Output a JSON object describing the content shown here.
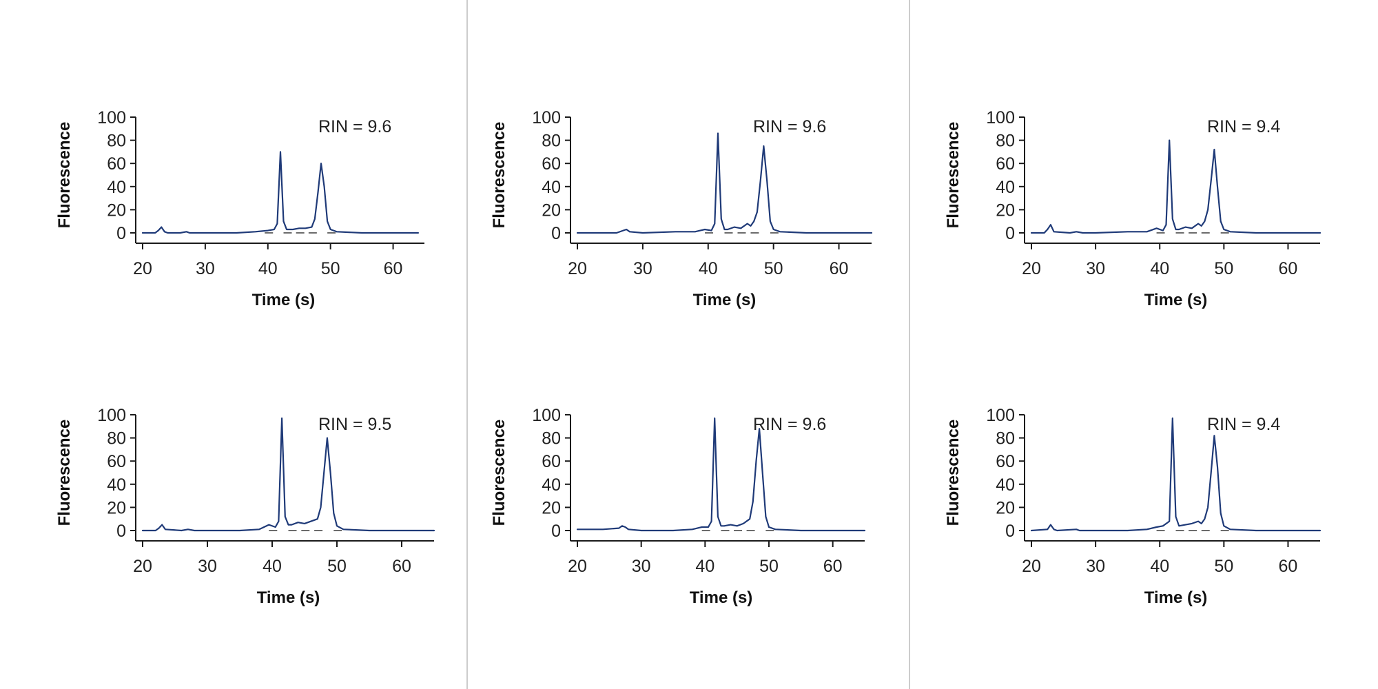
{
  "chart_data": [
    {
      "type": "line",
      "panel": "top-left",
      "ylabel": "Fluorescence",
      "xlabel": "Time (s)",
      "ylim": [
        0,
        100
      ],
      "xlim": [
        20,
        65
      ],
      "xticks": [
        "20",
        "30",
        "40",
        "50",
        "60"
      ],
      "yticks": [
        "0",
        "20",
        "40",
        "60",
        "80",
        "100"
      ],
      "annotation": "RIN = 9.6",
      "legend": "none",
      "grid": false,
      "series": [
        {
          "x": [
            20,
            22,
            22.5,
            23,
            23.5,
            24,
            26,
            27,
            27.5,
            30,
            35,
            38,
            40,
            41,
            41.5,
            42,
            42.5,
            43,
            44,
            45,
            46,
            47,
            47.5,
            48,
            48.5,
            49,
            49.5,
            50,
            51,
            55,
            60,
            64
          ],
          "y": [
            0,
            0,
            2,
            5,
            1,
            0,
            0,
            1,
            0,
            0,
            0,
            1,
            2,
            3,
            8,
            70,
            10,
            3,
            3,
            4,
            4,
            5,
            12,
            35,
            60,
            40,
            10,
            3,
            1,
            0,
            0,
            0
          ]
        }
      ],
      "baseline_segments": [
        [
          39.5,
          41
        ],
        [
          42.5,
          44
        ],
        [
          44.5,
          46
        ],
        [
          46.5,
          48
        ],
        [
          49.5,
          51
        ]
      ]
    },
    {
      "type": "line",
      "panel": "top-middle",
      "ylabel": "Fluorescence",
      "xlabel": "Time (s)",
      "ylim": [
        0,
        100
      ],
      "xlim": [
        20,
        65
      ],
      "xticks": [
        "20",
        "30",
        "40",
        "50",
        "60"
      ],
      "yticks": [
        "0",
        "20",
        "40",
        "60",
        "80",
        "100"
      ],
      "annotation": "RIN = 9.6",
      "legend": "none",
      "grid": false,
      "series": [
        {
          "x": [
            20,
            26,
            27,
            27.5,
            28,
            30,
            35,
            38,
            39.5,
            40.5,
            41,
            41.5,
            42,
            42.5,
            43,
            44,
            45,
            46,
            46.5,
            47,
            47.5,
            48,
            48.5,
            49,
            49.5,
            50,
            51,
            55,
            60,
            65
          ],
          "y": [
            0,
            0,
            2,
            3,
            1,
            0,
            1,
            1,
            3,
            2,
            8,
            86,
            12,
            3,
            3,
            5,
            4,
            8,
            6,
            10,
            18,
            45,
            75,
            45,
            10,
            3,
            1,
            0,
            0,
            0
          ]
        }
      ],
      "baseline_segments": [
        [
          39.5,
          41
        ],
        [
          42.5,
          44
        ],
        [
          44.5,
          46
        ],
        [
          46.5,
          48
        ],
        [
          49.5,
          51
        ]
      ]
    },
    {
      "type": "line",
      "panel": "top-right",
      "ylabel": "Fluorescence",
      "xlabel": "Time (s)",
      "ylim": [
        0,
        100
      ],
      "xlim": [
        20,
        65
      ],
      "xticks": [
        "20",
        "30",
        "40",
        "50",
        "60"
      ],
      "yticks": [
        "0",
        "20",
        "40",
        "60",
        "80",
        "100"
      ],
      "annotation": "RIN = 9.4",
      "legend": "none",
      "grid": false,
      "series": [
        {
          "x": [
            20,
            22,
            22.5,
            23,
            23.5,
            26,
            27,
            28,
            30,
            35,
            38,
            39.5,
            40.5,
            41,
            41.5,
            42,
            42.5,
            43,
            44,
            45,
            46,
            46.5,
            47,
            47.5,
            48,
            48.5,
            49,
            49.5,
            50,
            51,
            55,
            60,
            65
          ],
          "y": [
            0,
            0,
            3,
            7,
            1,
            0,
            1,
            0,
            0,
            1,
            1,
            4,
            2,
            7,
            80,
            12,
            3,
            3,
            5,
            4,
            8,
            6,
            10,
            20,
            45,
            72,
            40,
            10,
            3,
            1,
            0,
            0,
            0
          ]
        }
      ],
      "baseline_segments": [
        [
          39.5,
          41
        ],
        [
          42.5,
          44
        ],
        [
          44.5,
          46
        ],
        [
          46.5,
          48
        ],
        [
          49.5,
          51
        ]
      ]
    },
    {
      "type": "line",
      "panel": "bottom-left",
      "ylabel": "Fluorescence",
      "xlabel": "Time (s)",
      "ylim": [
        0,
        100
      ],
      "xlim": [
        20,
        65
      ],
      "xticks": [
        "20",
        "30",
        "40",
        "50",
        "60"
      ],
      "yticks": [
        "0",
        "20",
        "40",
        "60",
        "80",
        "100"
      ],
      "annotation": "RIN = 9.5",
      "legend": "none",
      "grid": false,
      "series": [
        {
          "x": [
            20,
            22,
            22.5,
            23,
            23.5,
            26,
            27,
            28,
            30,
            35,
            38,
            39.5,
            40.5,
            41,
            41.5,
            42,
            42.5,
            43,
            44,
            45,
            46,
            47,
            47.5,
            48,
            48.5,
            49,
            49.5,
            50,
            51,
            55,
            60,
            65
          ],
          "y": [
            0,
            0,
            2,
            5,
            1,
            0,
            1,
            0,
            0,
            0,
            1,
            5,
            3,
            8,
            97,
            12,
            5,
            5,
            7,
            6,
            8,
            10,
            20,
            50,
            80,
            50,
            15,
            4,
            1,
            0,
            0,
            0
          ]
        }
      ],
      "baseline_segments": [
        [
          39.5,
          41
        ],
        [
          42.5,
          44
        ],
        [
          44.5,
          46
        ],
        [
          46.5,
          48
        ],
        [
          49.5,
          51
        ]
      ]
    },
    {
      "type": "line",
      "panel": "bottom-middle",
      "ylabel": "Fluorescence",
      "xlabel": "Time (s)",
      "ylim": [
        0,
        100
      ],
      "xlim": [
        20,
        65
      ],
      "xticks": [
        "20",
        "30",
        "40",
        "50",
        "60"
      ],
      "yticks": [
        "0",
        "20",
        "40",
        "60",
        "80",
        "100"
      ],
      "annotation": "RIN = 9.6",
      "legend": "none",
      "grid": false,
      "series": [
        {
          "x": [
            20,
            24,
            26.5,
            27,
            27.5,
            28,
            30,
            35,
            38,
            39.5,
            40.5,
            41,
            41.5,
            42,
            42.5,
            43,
            44,
            45,
            46,
            47,
            47.5,
            48,
            48.5,
            49,
            49.5,
            50,
            51,
            55,
            60,
            65
          ],
          "y": [
            1,
            1,
            2,
            4,
            3,
            1,
            0,
            0,
            1,
            3,
            3,
            8,
            97,
            12,
            4,
            4,
            5,
            4,
            6,
            10,
            25,
            60,
            88,
            50,
            12,
            3,
            1,
            0,
            0,
            0
          ]
        }
      ],
      "baseline_segments": [
        [
          39.5,
          41
        ],
        [
          42.5,
          44
        ],
        [
          44.5,
          46
        ],
        [
          46.5,
          48
        ],
        [
          49.5,
          51
        ]
      ]
    },
    {
      "type": "line",
      "panel": "bottom-right",
      "ylabel": "Fluorescence",
      "xlabel": "Time (s)",
      "ylim": [
        0,
        100
      ],
      "xlim": [
        20,
        65
      ],
      "xticks": [
        "20",
        "30",
        "40",
        "50",
        "60"
      ],
      "yticks": [
        "0",
        "20",
        "40",
        "60",
        "80",
        "100"
      ],
      "annotation": "RIN = 9.4",
      "legend": "none",
      "grid": false,
      "series": [
        {
          "x": [
            20,
            22.5,
            23,
            23.5,
            24,
            27,
            27.5,
            28,
            30,
            35,
            38,
            39.5,
            40.5,
            41.5,
            42,
            42.5,
            43,
            44,
            45,
            46,
            46.5,
            47,
            47.5,
            48,
            48.5,
            49,
            49.5,
            50,
            51,
            55,
            60,
            65
          ],
          "y": [
            0,
            1,
            5,
            1,
            0,
            1,
            0,
            0,
            0,
            0,
            1,
            3,
            4,
            8,
            97,
            12,
            4,
            5,
            6,
            8,
            6,
            10,
            20,
            50,
            82,
            55,
            15,
            4,
            1,
            0,
            0,
            0
          ]
        }
      ],
      "baseline_segments": [
        [
          39.5,
          41
        ],
        [
          42.5,
          44
        ],
        [
          44.5,
          46
        ],
        [
          46.5,
          48
        ],
        [
          49.5,
          51
        ]
      ]
    }
  ],
  "colors": {
    "trace": "#1f3a78",
    "axis": "#1a1a1a",
    "baseline": "#6b6b6b",
    "divider": "#bcbcbc"
  }
}
